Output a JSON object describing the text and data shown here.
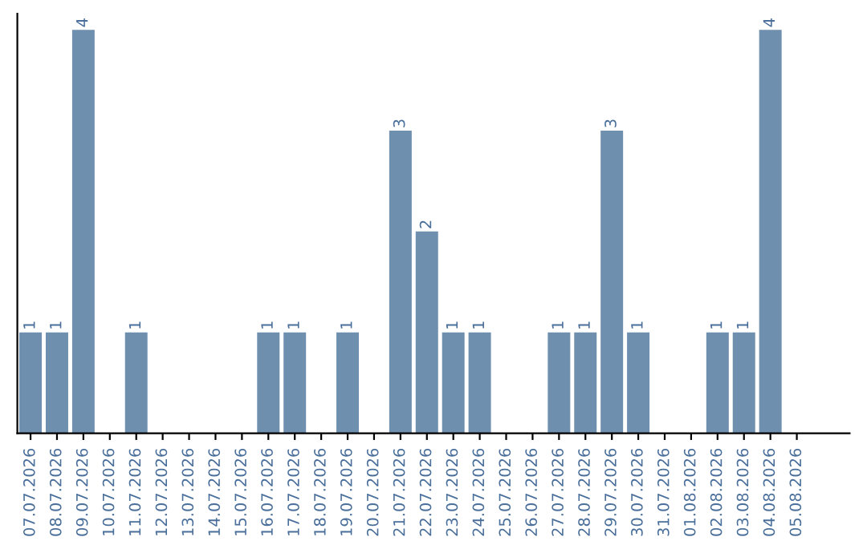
{
  "chart_data": {
    "type": "bar",
    "categories": [
      "07.07.2026",
      "08.07.2026",
      "09.07.2026",
      "10.07.2026",
      "11.07.2026",
      "12.07.2026",
      "13.07.2026",
      "14.07.2026",
      "15.07.2026",
      "16.07.2026",
      "17.07.2026",
      "18.07.2026",
      "19.07.2026",
      "20.07.2026",
      "21.07.2026",
      "22.07.2026",
      "23.07.2026",
      "24.07.2026",
      "25.07.2026",
      "26.07.2026",
      "27.07.2026",
      "28.07.2026",
      "29.07.2026",
      "30.07.2026",
      "31.07.2026",
      "01.08.2026",
      "02.08.2026",
      "03.08.2026",
      "04.08.2026",
      "05.08.2026"
    ],
    "values": [
      1,
      1,
      4,
      0,
      1,
      0,
      0,
      0,
      0,
      1,
      1,
      0,
      1,
      0,
      3,
      2,
      1,
      1,
      0,
      0,
      1,
      1,
      3,
      1,
      0,
      0,
      1,
      1,
      4,
      0
    ],
    "value_labels": [
      "1",
      "1",
      "4",
      null,
      "1",
      null,
      null,
      null,
      null,
      "1",
      "1",
      null,
      "1",
      null,
      "3",
      "2",
      "1",
      "1",
      null,
      null,
      "1",
      "1",
      "3",
      "1",
      null,
      null,
      "1",
      "1",
      "4",
      null
    ],
    "color": "#6f8fae",
    "tick_labels": "x",
    "grid": false,
    "legend": false
  }
}
